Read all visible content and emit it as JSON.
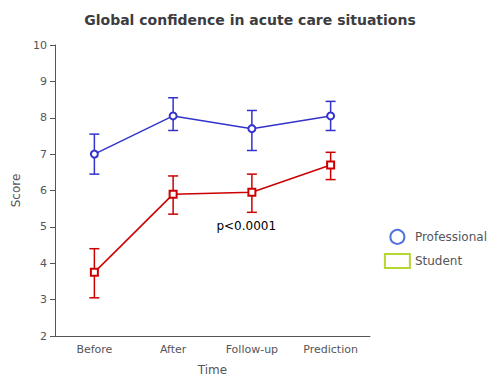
{
  "chart_data": {
    "type": "line",
    "title": "Global confidence in acute care situations",
    "xlabel": "Time",
    "ylabel": "Score",
    "categories": [
      "Before",
      "After",
      "Follow-up",
      "Prediction"
    ],
    "series": [
      {
        "name": "Professional",
        "color": "#3333cc",
        "marker": "circle",
        "values": [
          7.0,
          8.05,
          7.7,
          8.05
        ],
        "ci_lower": [
          6.45,
          7.65,
          7.1,
          7.65
        ],
        "ci_upper": [
          7.55,
          8.55,
          8.2,
          8.45
        ]
      },
      {
        "name": "Student",
        "color": "#cc0000",
        "marker": "square",
        "values": [
          3.75,
          5.9,
          5.95,
          6.7
        ],
        "ci_lower": [
          3.05,
          5.35,
          5.4,
          6.3
        ],
        "ci_upper": [
          4.4,
          6.4,
          6.45,
          7.05
        ]
      }
    ],
    "ylim": [
      2,
      10
    ],
    "yticks": [
      2,
      3,
      4,
      5,
      6,
      7,
      8,
      9,
      10
    ],
    "annotations": [
      {
        "text": "p<0.0001",
        "x": 1.55,
        "y": 4.85
      }
    ],
    "grid": false,
    "legend": "right"
  }
}
